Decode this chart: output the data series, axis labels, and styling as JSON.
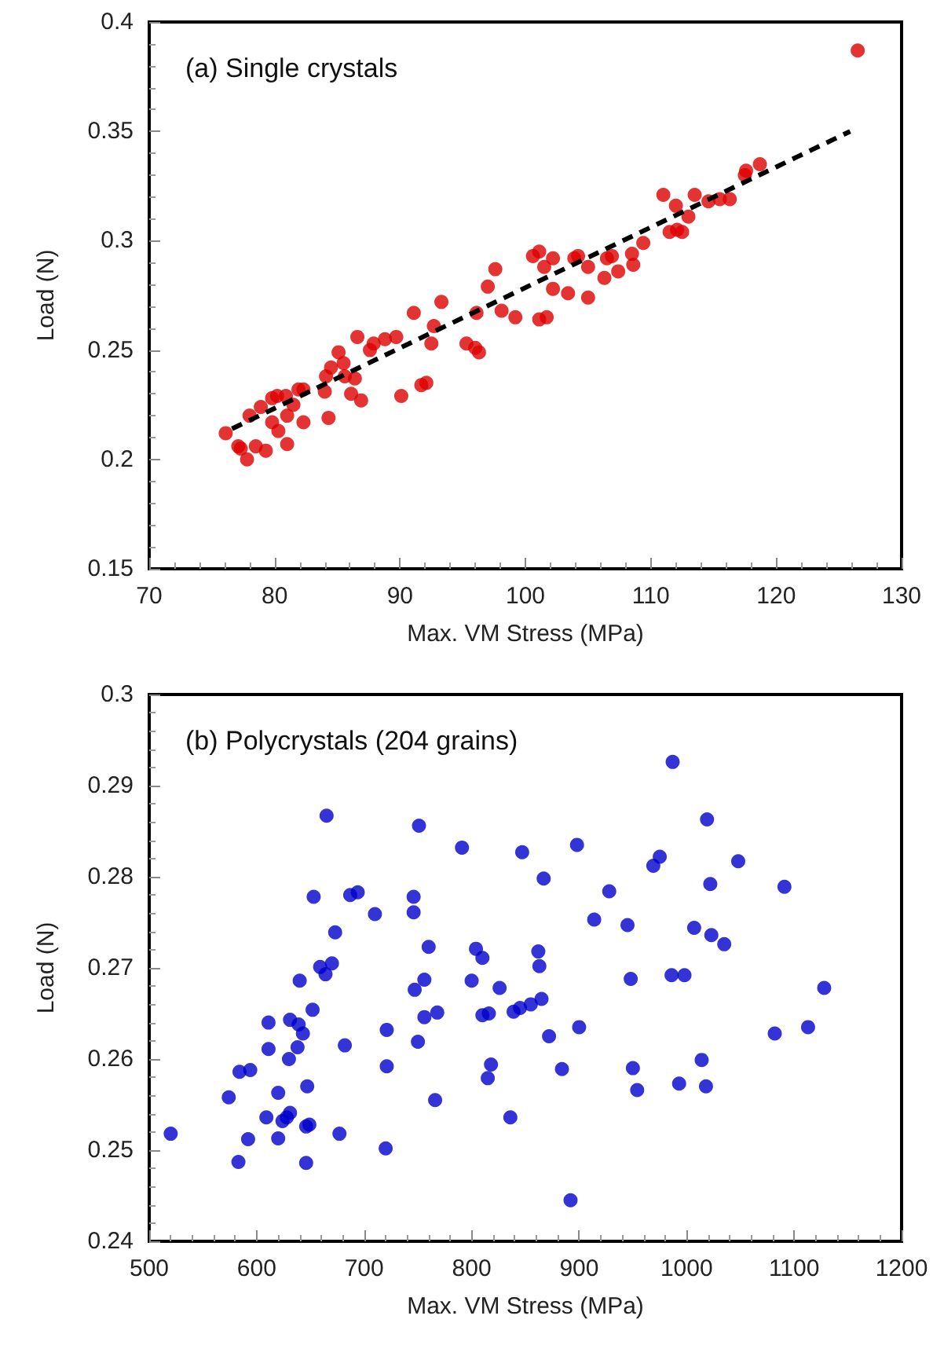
{
  "chart_data": [
    {
      "type": "scatter",
      "title": "(a) Single crystals",
      "xlabel": "Max. VM Stress (MPa)",
      "ylabel": "Load (N)",
      "xlim": [
        70,
        130
      ],
      "xticks": [
        70,
        80,
        90,
        100,
        110,
        120,
        130
      ],
      "ylim": [
        0.15,
        0.4
      ],
      "yticks": [
        0.15,
        0.2,
        0.25,
        0.3,
        0.35,
        0.4
      ],
      "series": [
        {
          "color": "#dd0000",
          "marker": "circle",
          "x": [
            76.1,
            77.1,
            77.8,
            77.3,
            78.5,
            79.3,
            78.0,
            78.9,
            79.8,
            79.8,
            80.2,
            80.9,
            80.3,
            81.0,
            81.0,
            81.5,
            81.9,
            82.3,
            82.3,
            84.3,
            84.0,
            84.1,
            84.5,
            85.1,
            85.5,
            85.6,
            86.4,
            86.1,
            86.9,
            86.6,
            87.6,
            87.9,
            88.8,
            89.7,
            90.1,
            91.7,
            92.1,
            91.1,
            92.5,
            92.7,
            93.3,
            95.3,
            96.0,
            96.3,
            96.1,
            97.0,
            97.6,
            98.1,
            99.2,
            100.6,
            101.1,
            101.1,
            101.5,
            101.7,
            102.2,
            102.2,
            103.4,
            103.9,
            104.2,
            105.0,
            105.0,
            106.3,
            106.5,
            106.9,
            107.4,
            108.5,
            108.6,
            109.4,
            111.0,
            111.5,
            112.0,
            112.1,
            112.5,
            113.0,
            113.5,
            114.6,
            115.5,
            116.3,
            117.5,
            117.6,
            118.7,
            126.5
          ],
          "values": [
            0.212,
            0.206,
            0.2,
            0.205,
            0.206,
            0.204,
            0.22,
            0.224,
            0.228,
            0.217,
            0.229,
            0.229,
            0.213,
            0.207,
            0.22,
            0.225,
            0.232,
            0.232,
            0.217,
            0.219,
            0.231,
            0.238,
            0.242,
            0.249,
            0.244,
            0.238,
            0.237,
            0.23,
            0.227,
            0.256,
            0.25,
            0.253,
            0.255,
            0.256,
            0.229,
            0.234,
            0.235,
            0.267,
            0.253,
            0.261,
            0.272,
            0.253,
            0.251,
            0.249,
            0.267,
            0.279,
            0.287,
            0.268,
            0.265,
            0.293,
            0.295,
            0.264,
            0.288,
            0.265,
            0.292,
            0.278,
            0.276,
            0.292,
            0.293,
            0.288,
            0.274,
            0.283,
            0.292,
            0.293,
            0.286,
            0.294,
            0.289,
            0.299,
            0.321,
            0.304,
            0.316,
            0.305,
            0.304,
            0.311,
            0.321,
            0.318,
            0.319,
            0.319,
            0.33,
            0.332,
            0.335,
            0.387
          ]
        },
        {
          "type": "line",
          "color": "#000000",
          "line_style": "dashed",
          "x": [
            76.6,
            125.9
          ],
          "values": [
            0.214,
            0.35
          ]
        }
      ]
    },
    {
      "type": "scatter",
      "title": "(b) Polycrystals (204 grains)",
      "xlabel": "Max. VM Stress (MPa)",
      "ylabel": "Load (N)",
      "xlim": [
        500,
        1200
      ],
      "xticks": [
        500,
        600,
        700,
        800,
        900,
        1000,
        1100,
        1200
      ],
      "ylim": [
        0.24,
        0.3
      ],
      "yticks": [
        0.24,
        0.25,
        0.26,
        0.27,
        0.28,
        0.29,
        0.3
      ],
      "marker": "circle",
      "series": [
        {
          "color": "#0000cc",
          "x": [
            520,
            574,
            584,
            594,
            583,
            592,
            609,
            620,
            611,
            611,
            620,
            624,
            628,
            631,
            630,
            631,
            639,
            643,
            638,
            647,
            646,
            649,
            646,
            640,
            652,
            653,
            665,
            659,
            664,
            670,
            673,
            677,
            682,
            687,
            694,
            710,
            720,
            721,
            721,
            746,
            746,
            747,
            750,
            751,
            756,
            756,
            760,
            766,
            768,
            791,
            800,
            804,
            810,
            810,
            816,
            818,
            815,
            826,
            836,
            839,
            845,
            847,
            855,
            865,
            867,
            862,
            863,
            872,
            884,
            892,
            898,
            900,
            914,
            928,
            945,
            948,
            950,
            954,
            969,
            975,
            987,
            986,
            998,
            993,
            1007,
            1014,
            1018,
            1019,
            1022,
            1023,
            1035,
            1048,
            1082,
            1091,
            1113,
            1128
          ],
          "values": [
            0.2518,
            0.2558,
            0.2586,
            0.2588,
            0.2487,
            0.2512,
            0.2536,
            0.2563,
            0.264,
            0.2611,
            0.2513,
            0.2532,
            0.2536,
            0.2541,
            0.26,
            0.2643,
            0.2638,
            0.2628,
            0.2613,
            0.257,
            0.2526,
            0.2528,
            0.2486,
            0.2686,
            0.2654,
            0.2778,
            0.2867,
            0.2701,
            0.2693,
            0.2705,
            0.2739,
            0.2518,
            0.2615,
            0.278,
            0.2783,
            0.2759,
            0.2502,
            0.2592,
            0.2632,
            0.2778,
            0.2761,
            0.2676,
            0.2619,
            0.2856,
            0.2687,
            0.2646,
            0.2723,
            0.2555,
            0.2651,
            0.2832,
            0.2686,
            0.2721,
            0.2711,
            0.2648,
            0.265,
            0.2594,
            0.2579,
            0.2678,
            0.2536,
            0.2652,
            0.2656,
            0.2827,
            0.266,
            0.2666,
            0.2798,
            0.2718,
            0.2702,
            0.2625,
            0.2589,
            0.2445,
            0.2835,
            0.2635,
            0.2753,
            0.2784,
            0.2747,
            0.2688,
            0.259,
            0.2566,
            0.2812,
            0.2822,
            0.2926,
            0.2692,
            0.2692,
            0.2573,
            0.2744,
            0.2599,
            0.257,
            0.2863,
            0.2792,
            0.2736,
            0.2726,
            0.2817,
            0.2628,
            0.2789,
            0.2635,
            0.2678
          ]
        }
      ]
    }
  ]
}
